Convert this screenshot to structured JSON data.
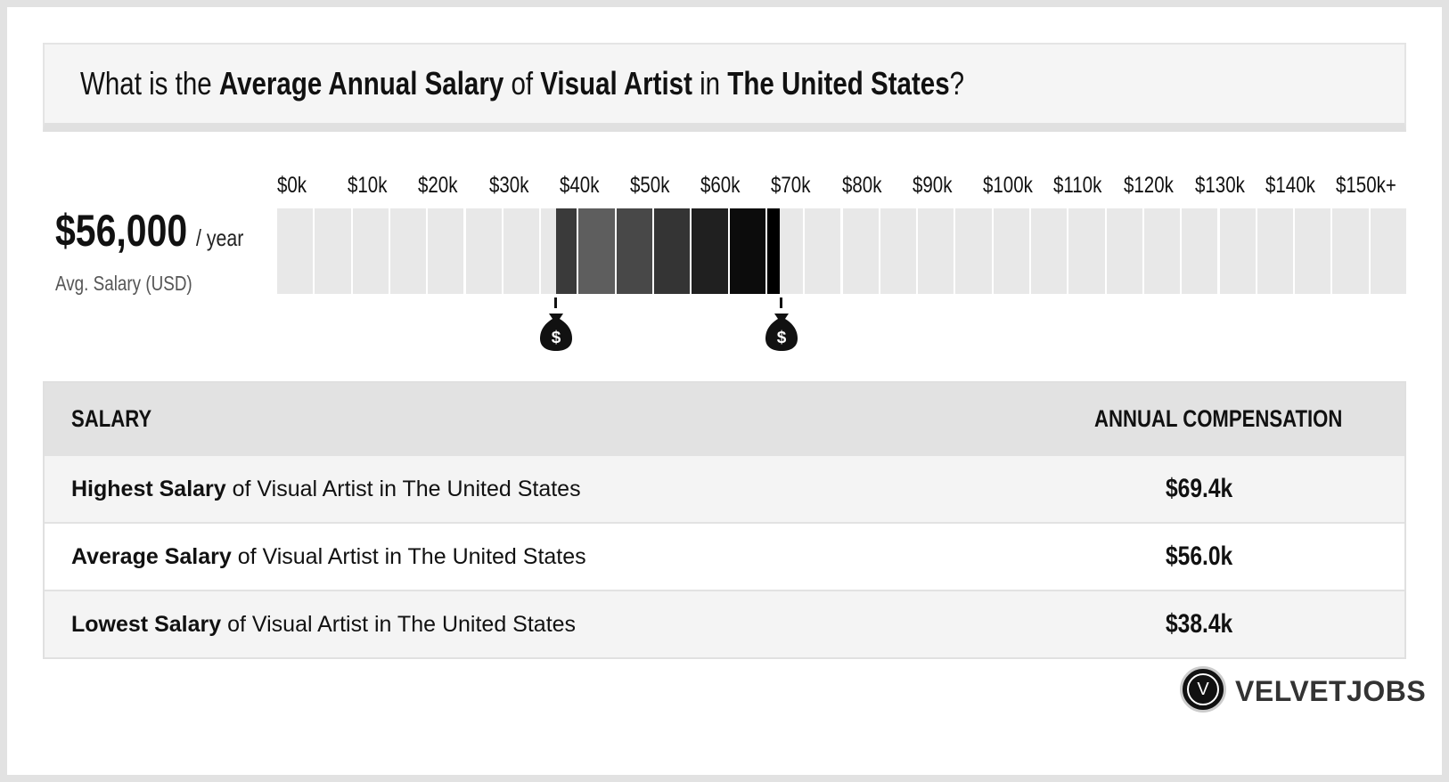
{
  "header": {
    "title_pre": "What is the ",
    "title_b1": "Average Annual Salary",
    "title_mid1": " of ",
    "title_b2": "Visual Artist",
    "title_mid2": " in ",
    "title_b3": "The United States",
    "title_post": "?"
  },
  "summary": {
    "amount": "$56,000",
    "unit": "/ year",
    "label": "Avg. Salary (USD)"
  },
  "chart_data": {
    "type": "bar",
    "tick_labels": [
      "$0k",
      "$10k",
      "$20k",
      "$30k",
      "$40k",
      "$50k",
      "$60k",
      "$70k",
      "$80k",
      "$90k",
      "$100k",
      "$110k",
      "$120k",
      "$130k",
      "$140k",
      "$150k+"
    ],
    "range_low_k": 38.4,
    "range_high_k": 69.4,
    "average_k": 56.0,
    "xlim": [
      0,
      150
    ],
    "marker_icon": "money-bag-icon"
  },
  "table": {
    "col_salary": "SALARY",
    "col_comp": "ANNUAL COMPENSATION",
    "rows": [
      {
        "bold": "Highest Salary",
        "rest": " of Visual Artist in The United States",
        "value": "$69.4k"
      },
      {
        "bold": "Average Salary",
        "rest": " of Visual Artist in The United States",
        "value": "$56.0k"
      },
      {
        "bold": "Lowest Salary",
        "rest": " of Visual Artist in The United States",
        "value": "$38.4k"
      }
    ]
  },
  "brand": {
    "logo_letter": "V",
    "name": "VELVETJOBS"
  }
}
